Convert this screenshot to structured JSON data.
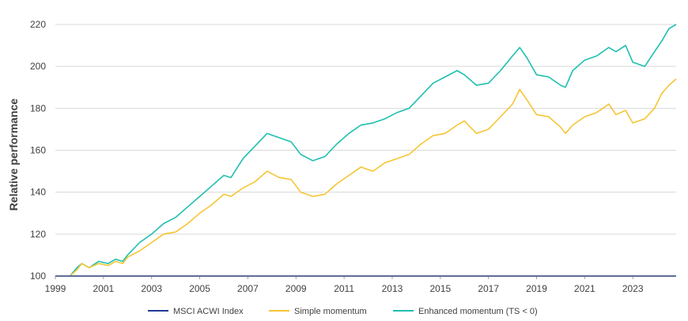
{
  "chart_data": {
    "type": "line",
    "title": "",
    "xlabel": "",
    "ylabel": "Relative performance",
    "xlim": [
      1999,
      2024.8
    ],
    "ylim": [
      100,
      220
    ],
    "x_ticks": [
      "1999",
      "2001",
      "2003",
      "2005",
      "2007",
      "2009",
      "2011",
      "2013",
      "2015",
      "2017",
      "2019",
      "2021",
      "2023"
    ],
    "y_ticks": [
      "100",
      "120",
      "140",
      "160",
      "180",
      "200",
      "220"
    ],
    "grid": "horizontal",
    "legend_position": "bottom",
    "series": [
      {
        "name": "MSCI ACWI Index",
        "color": "#1f3a93",
        "x": [
          1999,
          2024.8
        ],
        "y": [
          100,
          100
        ]
      },
      {
        "name": "Simple momentum",
        "color": "#f5c533",
        "x": [
          1999,
          1999.6,
          1999.9,
          2000.1,
          2000.4,
          2000.8,
          2001.2,
          2001.5,
          2001.8,
          2002.0,
          2002.5,
          2003.0,
          2003.5,
          2004.0,
          2004.5,
          2005.0,
          2005.5,
          2006.0,
          2006.3,
          2006.8,
          2007.3,
          2007.8,
          2008.3,
          2008.8,
          2009.2,
          2009.7,
          2010.2,
          2010.7,
          2011.2,
          2011.7,
          2012.2,
          2012.7,
          2013.2,
          2013.7,
          2014.2,
          2014.7,
          2015.2,
          2015.7,
          2016.0,
          2016.5,
          2017.0,
          2017.5,
          2018.0,
          2018.3,
          2018.6,
          2019.0,
          2019.5,
          2020.0,
          2020.2,
          2020.5,
          2021.0,
          2021.5,
          2022.0,
          2022.3,
          2022.7,
          2023.0,
          2023.5,
          2023.9,
          2024.2,
          2024.5,
          2024.8
        ],
        "y": [
          100,
          100,
          103,
          106,
          104,
          106,
          105,
          107,
          106,
          109,
          112,
          116,
          120,
          121,
          125,
          130,
          134,
          139,
          138,
          142,
          145,
          150,
          147,
          146,
          140,
          138,
          139,
          144,
          148,
          152,
          150,
          154,
          156,
          158,
          163,
          167,
          168,
          172,
          174,
          168,
          170,
          176,
          182,
          189,
          184,
          177,
          176,
          171,
          168,
          172,
          176,
          178,
          182,
          177,
          179,
          173,
          175,
          180,
          187,
          191,
          194
        ]
      },
      {
        "name": "Enhanced momentum (TS < 0)",
        "color": "#1fbfb0",
        "x": [
          1999,
          1999.6,
          1999.9,
          2000.1,
          2000.4,
          2000.8,
          2001.2,
          2001.5,
          2001.8,
          2002.0,
          2002.5,
          2003.0,
          2003.5,
          2004.0,
          2004.5,
          2005.0,
          2005.5,
          2006.0,
          2006.3,
          2006.8,
          2007.3,
          2007.8,
          2008.3,
          2008.8,
          2009.2,
          2009.7,
          2010.2,
          2010.7,
          2011.2,
          2011.7,
          2012.2,
          2012.7,
          2013.2,
          2013.7,
          2014.2,
          2014.7,
          2015.2,
          2015.7,
          2016.0,
          2016.5,
          2017.0,
          2017.5,
          2018.0,
          2018.3,
          2018.6,
          2019.0,
          2019.5,
          2020.0,
          2020.2,
          2020.5,
          2021.0,
          2021.5,
          2022.0,
          2022.3,
          2022.7,
          2023.0,
          2023.5,
          2023.9,
          2024.2,
          2024.5,
          2024.8
        ],
        "y": [
          100,
          100,
          104,
          106,
          104,
          107,
          106,
          108,
          107,
          110,
          116,
          120,
          125,
          128,
          133,
          138,
          143,
          148,
          147,
          156,
          162,
          168,
          166,
          164,
          158,
          155,
          157,
          163,
          168,
          172,
          173,
          175,
          178,
          180,
          186,
          192,
          195,
          198,
          196,
          191,
          192,
          198,
          205,
          209,
          204,
          196,
          195,
          191,
          190,
          198,
          203,
          205,
          209,
          207,
          210,
          202,
          200,
          207,
          212,
          218,
          220
        ]
      }
    ]
  }
}
